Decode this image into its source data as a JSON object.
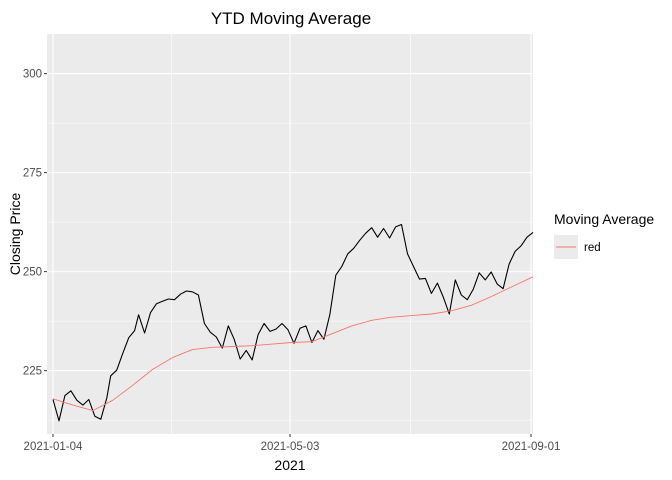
{
  "chart_data": {
    "type": "line",
    "title": "YTD Moving Average",
    "xlabel": "2021",
    "ylabel": "Closing Price",
    "x_start": "2021-01-04",
    "x_end": "2021-09-02",
    "xlim": [
      "2021-01-01",
      "2021-09-02"
    ],
    "ylim": [
      209,
      310
    ],
    "x_ticks": [
      "2021-01-04",
      "2021-05-03",
      "2021-09-01"
    ],
    "y_ticks": [
      225,
      250,
      275,
      300
    ],
    "grid": true,
    "panel_background": "#ebebeb",
    "legend": {
      "title": "Moving Average",
      "position": "right",
      "entries": [
        "red"
      ]
    },
    "series": [
      {
        "color": "#000000",
        "points": [
          [
            "2021-01-04",
            217.7
          ],
          [
            "2021-01-07",
            212.3
          ],
          [
            "2021-01-10",
            218.7
          ],
          [
            "2021-01-13",
            219.9
          ],
          [
            "2021-01-16",
            217.5
          ],
          [
            "2021-01-19",
            216.3
          ],
          [
            "2021-01-22",
            217.7
          ],
          [
            "2021-01-25",
            213.5
          ],
          [
            "2021-01-28",
            212.7
          ],
          [
            "2021-01-31",
            218.1
          ],
          [
            "2021-02-02",
            223.7
          ],
          [
            "2021-02-05",
            225.1
          ],
          [
            "2021-02-08",
            229.3
          ],
          [
            "2021-02-11",
            233.3
          ],
          [
            "2021-02-14",
            235.1
          ],
          [
            "2021-02-16",
            239.1
          ],
          [
            "2021-02-19",
            234.5
          ],
          [
            "2021-02-22",
            239.7
          ],
          [
            "2021-02-25",
            241.9
          ],
          [
            "2021-02-28",
            242.5
          ],
          [
            "2021-03-03",
            243.1
          ],
          [
            "2021-03-06",
            242.9
          ],
          [
            "2021-03-09",
            244.3
          ],
          [
            "2021-03-12",
            245.1
          ],
          [
            "2021-03-15",
            244.9
          ],
          [
            "2021-03-18",
            244.1
          ],
          [
            "2021-03-21",
            236.9
          ],
          [
            "2021-03-24",
            234.7
          ],
          [
            "2021-03-27",
            233.5
          ],
          [
            "2021-03-30",
            230.7
          ],
          [
            "2021-04-02",
            236.3
          ],
          [
            "2021-04-05",
            232.9
          ],
          [
            "2021-04-08",
            227.9
          ],
          [
            "2021-04-11",
            230.1
          ],
          [
            "2021-04-14",
            227.7
          ],
          [
            "2021-04-17",
            234.1
          ],
          [
            "2021-04-20",
            236.9
          ],
          [
            "2021-04-23",
            234.9
          ],
          [
            "2021-04-26",
            235.5
          ],
          [
            "2021-04-29",
            236.9
          ],
          [
            "2021-05-02",
            235.3
          ],
          [
            "2021-05-05",
            231.9
          ],
          [
            "2021-05-08",
            235.7
          ],
          [
            "2021-05-11",
            236.3
          ],
          [
            "2021-05-14",
            232.1
          ],
          [
            "2021-05-17",
            235.1
          ],
          [
            "2021-05-20",
            232.9
          ],
          [
            "2021-05-23",
            239.1
          ],
          [
            "2021-05-26",
            249.1
          ],
          [
            "2021-05-29",
            251.3
          ],
          [
            "2021-06-01",
            254.5
          ],
          [
            "2021-06-04",
            255.9
          ],
          [
            "2021-06-07",
            257.9
          ],
          [
            "2021-06-10",
            259.7
          ],
          [
            "2021-06-13",
            261.1
          ],
          [
            "2021-06-16",
            258.7
          ],
          [
            "2021-06-19",
            260.9
          ],
          [
            "2021-06-22",
            258.5
          ],
          [
            "2021-06-25",
            261.3
          ],
          [
            "2021-06-28",
            261.9
          ],
          [
            "2021-07-01",
            254.5
          ],
          [
            "2021-07-04",
            251.3
          ],
          [
            "2021-07-07",
            248.1
          ],
          [
            "2021-07-10",
            248.3
          ],
          [
            "2021-07-13",
            244.5
          ],
          [
            "2021-07-16",
            247.1
          ],
          [
            "2021-07-19",
            243.5
          ],
          [
            "2021-07-22",
            239.3
          ],
          [
            "2021-07-25",
            247.9
          ],
          [
            "2021-07-28",
            244.1
          ],
          [
            "2021-07-31",
            242.9
          ],
          [
            "2021-08-03",
            245.5
          ],
          [
            "2021-08-06",
            249.7
          ],
          [
            "2021-08-09",
            247.9
          ],
          [
            "2021-08-12",
            249.9
          ],
          [
            "2021-08-15",
            246.9
          ],
          [
            "2021-08-18",
            245.7
          ],
          [
            "2021-08-21",
            251.9
          ],
          [
            "2021-08-24",
            255.1
          ],
          [
            "2021-08-27",
            256.5
          ],
          [
            "2021-08-30",
            258.7
          ],
          [
            "2021-09-02",
            259.9
          ]
        ]
      },
      {
        "color": "#f8766d",
        "points": [
          [
            "2021-01-04",
            217.9
          ],
          [
            "2021-01-14",
            216.3
          ],
          [
            "2021-01-24",
            214.9
          ],
          [
            "2021-02-03",
            217.5
          ],
          [
            "2021-02-13",
            221.3
          ],
          [
            "2021-02-23",
            225.3
          ],
          [
            "2021-03-05",
            228.3
          ],
          [
            "2021-03-15",
            230.3
          ],
          [
            "2021-03-25",
            230.9
          ],
          [
            "2021-04-04",
            231.1
          ],
          [
            "2021-04-14",
            231.3
          ],
          [
            "2021-04-24",
            231.7
          ],
          [
            "2021-05-04",
            232.1
          ],
          [
            "2021-05-14",
            232.3
          ],
          [
            "2021-05-24",
            234.3
          ],
          [
            "2021-06-03",
            236.3
          ],
          [
            "2021-06-13",
            237.7
          ],
          [
            "2021-06-23",
            238.5
          ],
          [
            "2021-07-03",
            238.9
          ],
          [
            "2021-07-13",
            239.3
          ],
          [
            "2021-07-23",
            240.1
          ],
          [
            "2021-08-02",
            241.5
          ],
          [
            "2021-08-12",
            243.7
          ],
          [
            "2021-08-22",
            246.1
          ],
          [
            "2021-09-02",
            248.7
          ]
        ]
      }
    ]
  }
}
